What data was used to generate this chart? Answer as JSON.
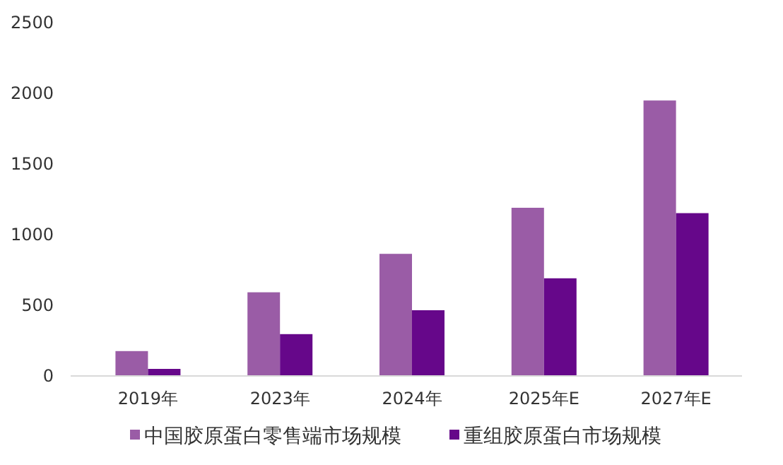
{
  "chart_data": {
    "type": "bar",
    "categories": [
      "2019年",
      "2023年",
      "2024年",
      "2025年E",
      "2027年E"
    ],
    "series": [
      {
        "name": "中国胶原蛋白零售端市场规模",
        "color": "#9a5ca6",
        "values": [
          176,
          592,
          864,
          1190,
          1949
        ]
      },
      {
        "name": "重组胶原蛋白市场规模",
        "color": "#66078a",
        "values": [
          50,
          296,
          465,
          691,
          1152
        ]
      }
    ],
    "ylim": [
      0,
      2500
    ],
    "yticks": [
      0,
      500,
      1000,
      1500,
      2000,
      2500
    ],
    "grid": false,
    "legend": "bottom"
  }
}
